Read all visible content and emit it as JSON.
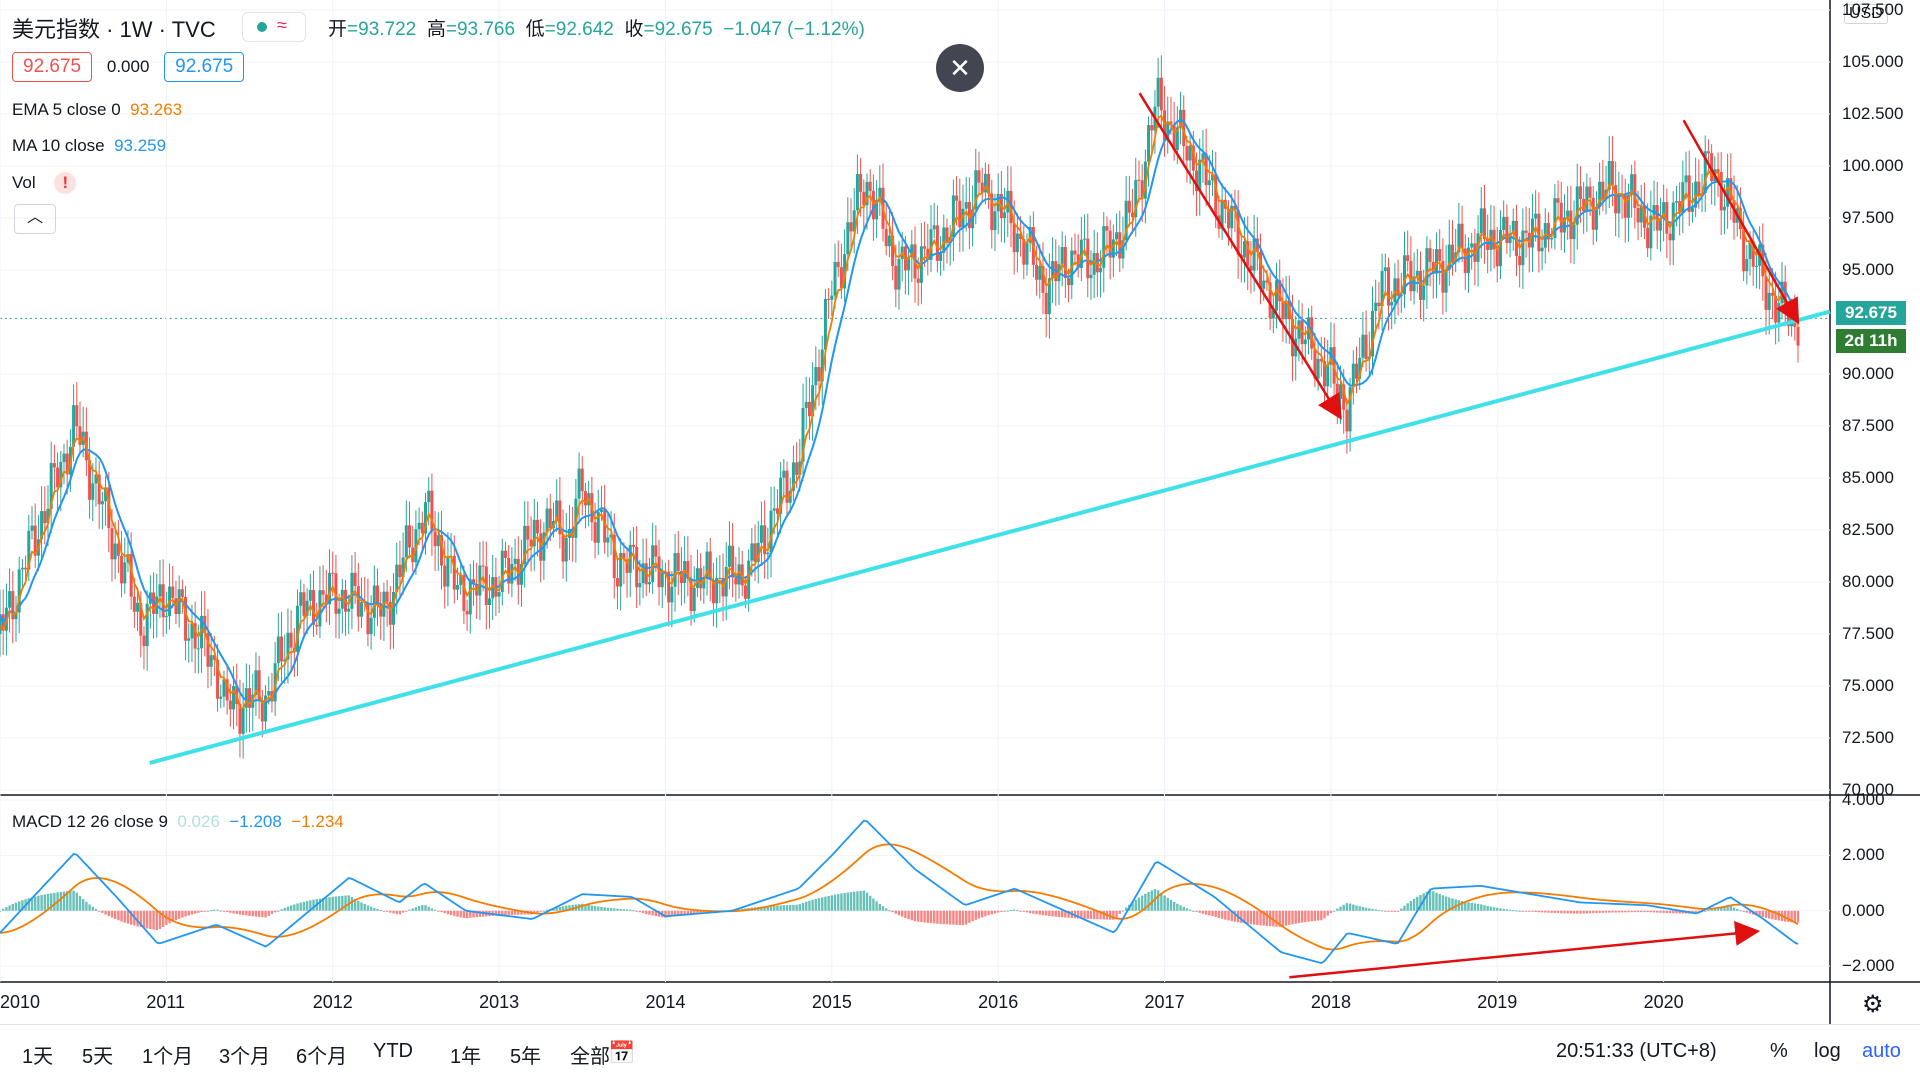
{
  "header": {
    "title": "美元指数 · 1W · TVC",
    "ohlc": {
      "open_label": "开",
      "open": "93.722",
      "high_label": "高",
      "high": "93.766",
      "low_label": "低",
      "low": "92.642",
      "close_label": "收",
      "close": "92.675",
      "change": "−1.047 (−1.12%)"
    },
    "bid": "92.675",
    "spread": "0.000",
    "ask": "92.675"
  },
  "indicators": {
    "ema": {
      "label": "EMA 5 close 0",
      "value": "93.263",
      "color": "#f57c00"
    },
    "ma": {
      "label": "MA 10 close",
      "value": "93.259",
      "color": "#2196f3"
    },
    "vol": {
      "label": "Vol",
      "warning": "!"
    },
    "macd": {
      "label": "MACD 12 26 close 9",
      "hist": "0.026",
      "macd": "−1.208",
      "signal": "−1.234"
    }
  },
  "price_axis": {
    "currency": "USD",
    "ticks": [
      "107.500",
      "105.000",
      "102.500",
      "100.000",
      "97.500",
      "95.000",
      "92.675",
      "90.000",
      "87.500",
      "85.000",
      "82.500",
      "80.000",
      "77.500",
      "75.000",
      "72.500",
      "70.000"
    ],
    "last_price": "92.675",
    "countdown": "2d 11h"
  },
  "macd_axis": {
    "ticks": [
      "4.000",
      "2.000",
      "0.000",
      "−2.000"
    ]
  },
  "time_axis": {
    "ticks": [
      "2010",
      "2011",
      "2012",
      "2013",
      "2014",
      "2015",
      "2016",
      "2017",
      "2018",
      "2019",
      "2020"
    ]
  },
  "toolbar": {
    "ranges": [
      "1天",
      "5天",
      "1个月",
      "3个月",
      "6个月",
      "YTD",
      "1年",
      "5年",
      "全部"
    ],
    "clock": "20:51:33 (UTC+8)",
    "percent": "%",
    "log": "log",
    "auto": "auto"
  },
  "colors": {
    "up": "#26a69a",
    "down": "#ef5350",
    "trendline": "#40e0e8",
    "arrow": "#e01010",
    "ema": "#f57c00",
    "ma": "#2196f3"
  },
  "chart_data": [
    {
      "type": "line",
      "series_kind": "weekly candlestick (approximated as closes)",
      "x": [
        2010.0,
        2010.2,
        2010.45,
        2010.6,
        2010.85,
        2011.0,
        2011.3,
        2011.35,
        2011.6,
        2011.8,
        2012.0,
        2012.3,
        2012.55,
        2012.75,
        2013.0,
        2013.3,
        2013.4,
        2013.5,
        2013.7,
        2013.9,
        2014.2,
        2014.5,
        2014.8,
        2015.0,
        2015.2,
        2015.4,
        2015.6,
        2015.9,
        2016.1,
        2016.3,
        2016.4,
        2016.6,
        2016.8,
        2016.95,
        2017.2,
        2017.45,
        2017.7,
        2017.95,
        2018.1,
        2018.3,
        2018.6,
        2018.9,
        2019.2,
        2019.4,
        2019.7,
        2019.95,
        2020.2,
        2020.3,
        2020.5,
        2020.7,
        2020.8
      ],
      "y": [
        77.5,
        82,
        87.5,
        84,
        78,
        79.5,
        76,
        74,
        74.5,
        78.5,
        79.5,
        78.5,
        83.5,
        79.5,
        80,
        83,
        82,
        84.5,
        81,
        80.5,
        80,
        80.5,
        86,
        94,
        99.5,
        95,
        96,
        99,
        97,
        94,
        95.5,
        95.5,
        97.5,
        103,
        100,
        96.5,
        93,
        90.5,
        88.5,
        94,
        95,
        96.5,
        96.5,
        97.5,
        99,
        97,
        99,
        100,
        96,
        93,
        92.7
      ],
      "ylim": [
        70,
        107.5
      ],
      "xlim": [
        2010,
        2021
      ]
    },
    {
      "type": "line",
      "title": "MACD 12 26 close 9",
      "x": [
        2010.0,
        2010.2,
        2010.45,
        2010.7,
        2010.95,
        2011.3,
        2011.6,
        2011.9,
        2012.1,
        2012.4,
        2012.55,
        2012.8,
        2013.2,
        2013.5,
        2013.8,
        2014.0,
        2014.4,
        2014.8,
        2015.0,
        2015.2,
        2015.5,
        2015.8,
        2016.1,
        2016.4,
        2016.7,
        2016.95,
        2017.3,
        2017.7,
        2017.95,
        2018.1,
        2018.4,
        2018.6,
        2018.9,
        2019.2,
        2019.5,
        2019.9,
        2020.2,
        2020.4,
        2020.6,
        2020.8
      ],
      "y": [
        -0.8,
        0.5,
        2.1,
        0.5,
        -1.2,
        -0.5,
        -1.3,
        0.2,
        1.2,
        0.3,
        1.0,
        0,
        -0.3,
        0.6,
        0.5,
        -0.2,
        0.0,
        0.8,
        2.0,
        3.3,
        1.5,
        0.2,
        0.8,
        0.0,
        -0.8,
        1.8,
        0.5,
        -1.5,
        -1.9,
        -0.8,
        -1.2,
        0.8,
        0.9,
        0.6,
        0.3,
        0.2,
        -0.1,
        0.5,
        -0.3,
        -1.2
      ],
      "ylim": [
        -2.5,
        4
      ]
    }
  ]
}
